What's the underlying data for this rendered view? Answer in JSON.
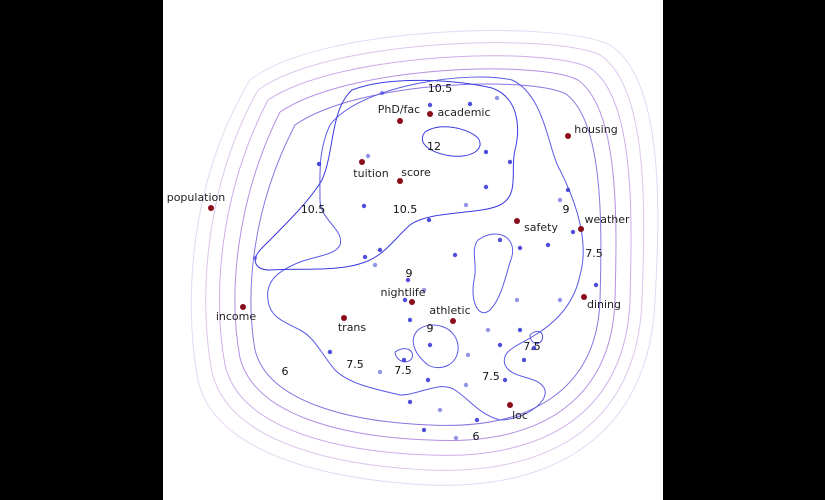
{
  "colors": {
    "background_outer": "#000000",
    "panel": "#ffffff",
    "contour_inner": "#4a4ae6",
    "contour_outer": "#c9a6e6",
    "feature_point": "#8b0b1b",
    "sample_point": "#3b3bd6"
  },
  "features": [
    {
      "label": "PhD/fac"
    },
    {
      "label": "academic"
    },
    {
      "label": "housing"
    },
    {
      "label": "tuition"
    },
    {
      "label": "score"
    },
    {
      "label": "population"
    },
    {
      "label": "safety"
    },
    {
      "label": "weather"
    },
    {
      "label": "income"
    },
    {
      "label": "nightlife"
    },
    {
      "label": "athletic"
    },
    {
      "label": "trans"
    },
    {
      "label": "dining"
    },
    {
      "label": "loc"
    }
  ],
  "contour_labels": [
    "10.5",
    "12",
    "10.5",
    "10.5",
    "9",
    "7.5",
    "9",
    "9",
    "7.5",
    "7.5",
    "7.5",
    "7.5",
    "6",
    "6"
  ]
}
